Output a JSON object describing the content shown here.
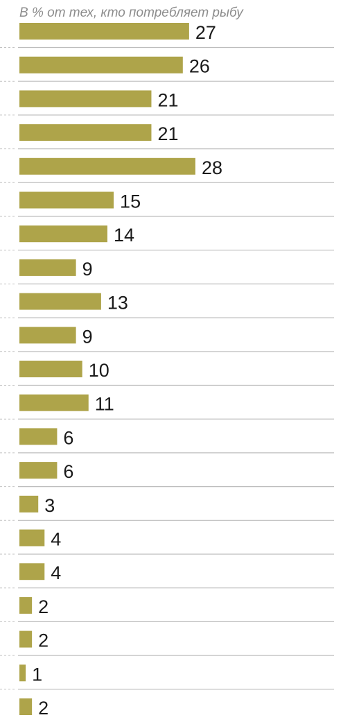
{
  "chart_data": {
    "type": "bar",
    "orientation": "horizontal",
    "subtitle": "В % от тех, кто потребляет рыбу",
    "values": [
      27,
      26,
      21,
      21,
      28,
      15,
      14,
      9,
      13,
      9,
      10,
      11,
      6,
      6,
      3,
      4,
      4,
      2,
      2,
      1,
      2
    ],
    "bar_color": "#aea44a",
    "value_labels": true,
    "grid": false
  }
}
